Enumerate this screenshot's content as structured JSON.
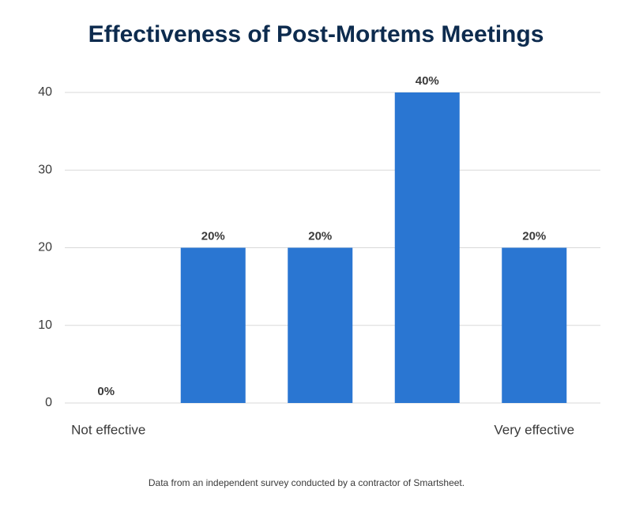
{
  "chart_data": {
    "type": "bar",
    "title": "Effectiveness of Post-Mortems Meetings",
    "categories": [
      "Not effective",
      null,
      null,
      null,
      "Very effective"
    ],
    "values": [
      0,
      20,
      20,
      40,
      20
    ],
    "value_labels": [
      "0%",
      "20%",
      "20%",
      "40%",
      "20%"
    ],
    "color": "#2a76d2",
    "ylim": [
      0,
      40
    ],
    "yticks": [
      0,
      10,
      20,
      30,
      40
    ],
    "grid": true,
    "note": "Data from an independent survey conducted by a contractor of Smartsheet."
  }
}
